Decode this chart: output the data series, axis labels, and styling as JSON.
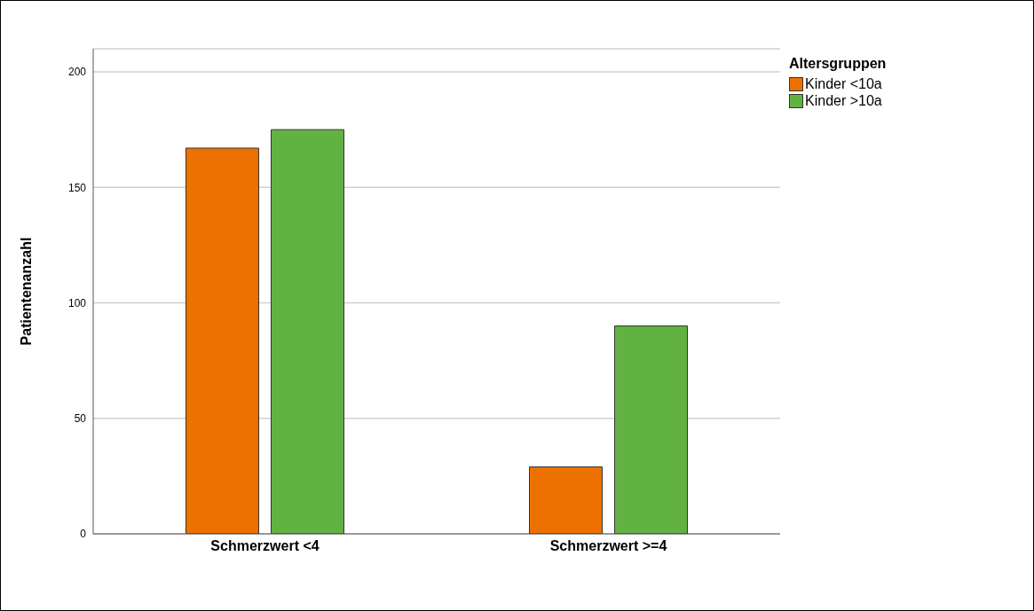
{
  "chart_data": {
    "type": "bar",
    "ylabel": "Patientenanzahl",
    "legend_title": "Altersgruppen",
    "categories": [
      "Schmerzwert <4",
      "Schmerzwert >=4"
    ],
    "series": [
      {
        "name": "Kinder <10a",
        "color": "#ed7100",
        "values": [
          167,
          29
        ]
      },
      {
        "name": "Kinder >10a",
        "color": "#62b242",
        "values": [
          175,
          90
        ]
      }
    ],
    "ylim": [
      0,
      210
    ],
    "yticks": [
      0,
      50,
      100,
      150,
      200
    ],
    "grid": "y",
    "legend": "top right"
  }
}
